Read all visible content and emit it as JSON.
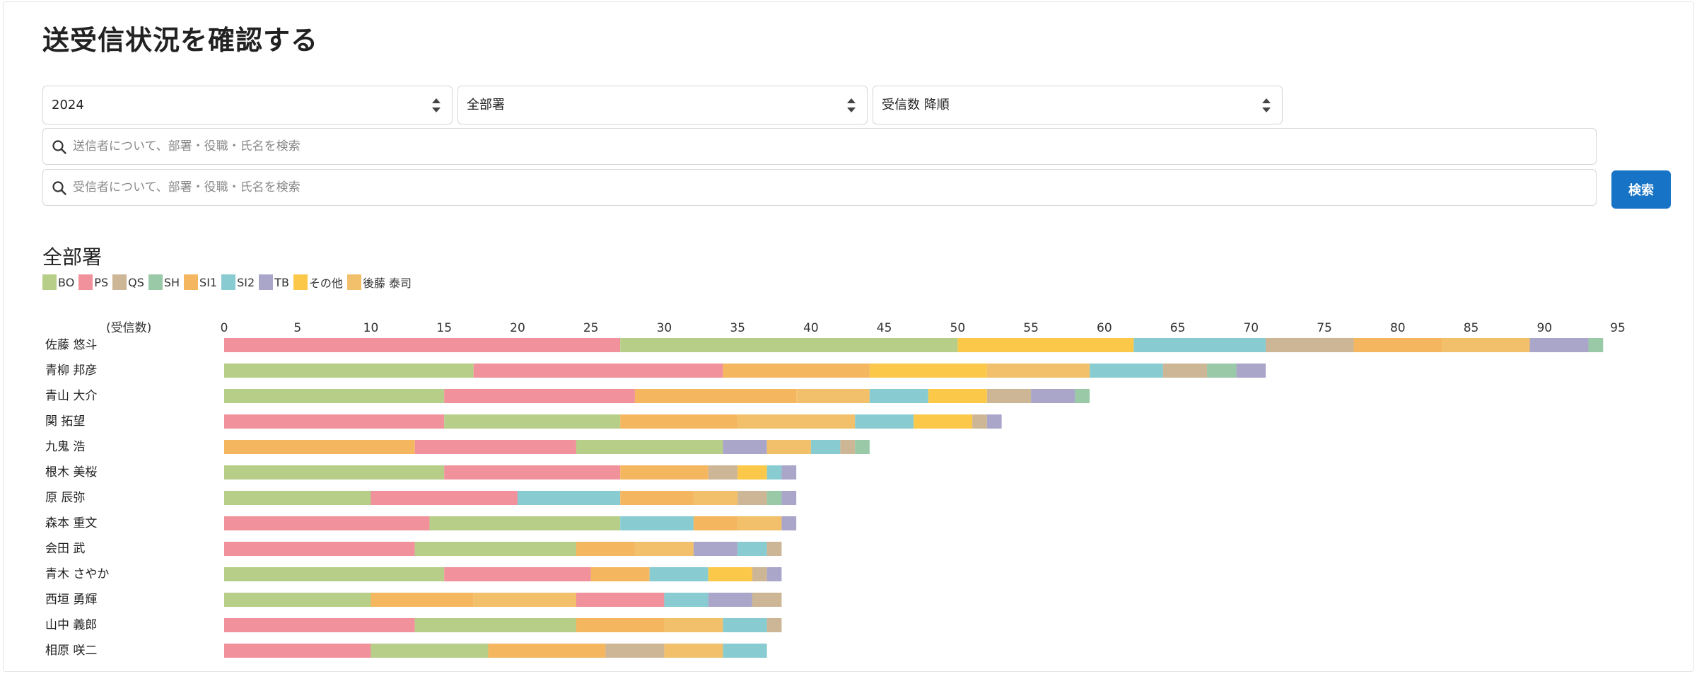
{
  "page": {
    "title": "送受信状況を確認する"
  },
  "filters": {
    "year": "2024",
    "department": "全部署",
    "sort": "受信数 降順"
  },
  "search": {
    "sender_placeholder": "送信者について、部署・役職・氏名を検索",
    "receiver_placeholder": "受信者について、部署・役職・氏名を検索",
    "button_label": "検索"
  },
  "colors": {
    "BO": "#b6ce87",
    "PS": "#f0919b",
    "QS": "#cdb695",
    "SH": "#9ac9a8",
    "SI1": "#f5b660",
    "SI2": "#88ccd1",
    "TB": "#a9a6c9",
    "その他": "#fbc849",
    "後藤 泰司": "#f2c06a",
    "accent": "#1773c6"
  },
  "chart_data": {
    "type": "bar",
    "orientation": "horizontal",
    "stacked": true,
    "title": "全部署",
    "ylabel": "(受信数)",
    "xlim": [
      0,
      95
    ],
    "xticks": [
      0,
      5,
      10,
      15,
      20,
      25,
      30,
      35,
      40,
      45,
      50,
      55,
      60,
      65,
      70,
      75,
      80,
      85,
      90,
      95
    ],
    "legend": [
      "BO",
      "PS",
      "QS",
      "SH",
      "SI1",
      "SI2",
      "TB",
      "その他",
      "後藤 泰司"
    ],
    "categories": [
      "佐藤 悠斗",
      "青柳 邦彦",
      "青山 大介",
      "関 拓望",
      "九鬼 浩",
      "根木 美桜",
      "原 辰弥",
      "森本 重文",
      "会田 武",
      "青木 さやか",
      "西垣 勇輝",
      "山中 義郎",
      "相原 咲二"
    ],
    "rows": [
      [
        [
          "PS",
          27
        ],
        [
          "BO",
          23
        ],
        [
          "その他",
          12
        ],
        [
          "SI2",
          9
        ],
        [
          "QS",
          6
        ],
        [
          "SI1",
          6
        ],
        [
          "後藤 泰司",
          6
        ],
        [
          "TB",
          4
        ],
        [
          "SH",
          1
        ]
      ],
      [
        [
          "BO",
          17
        ],
        [
          "PS",
          17
        ],
        [
          "SI1",
          10
        ],
        [
          "その他",
          8
        ],
        [
          "後藤 泰司",
          7
        ],
        [
          "SI2",
          5
        ],
        [
          "QS",
          3
        ],
        [
          "SH",
          2
        ],
        [
          "TB",
          2
        ]
      ],
      [
        [
          "BO",
          15
        ],
        [
          "PS",
          13
        ],
        [
          "SI1",
          11
        ],
        [
          "後藤 泰司",
          5
        ],
        [
          "SI2",
          4
        ],
        [
          "その他",
          4
        ],
        [
          "QS",
          3
        ],
        [
          "TB",
          3
        ],
        [
          "SH",
          1
        ]
      ],
      [
        [
          "PS",
          15
        ],
        [
          "BO",
          12
        ],
        [
          "SI1",
          8
        ],
        [
          "後藤 泰司",
          8
        ],
        [
          "SI2",
          4
        ],
        [
          "その他",
          4
        ],
        [
          "QS",
          1
        ],
        [
          "TB",
          1
        ]
      ],
      [
        [
          "SI1",
          13
        ],
        [
          "PS",
          11
        ],
        [
          "BO",
          10
        ],
        [
          "TB",
          3
        ],
        [
          "後藤 泰司",
          3
        ],
        [
          "SI2",
          2
        ],
        [
          "QS",
          1
        ],
        [
          "SH",
          1
        ]
      ],
      [
        [
          "BO",
          15
        ],
        [
          "PS",
          12
        ],
        [
          "SI1",
          6
        ],
        [
          "QS",
          2
        ],
        [
          "その他",
          2
        ],
        [
          "SI2",
          1
        ],
        [
          "TB",
          1
        ]
      ],
      [
        [
          "BO",
          10
        ],
        [
          "PS",
          10
        ],
        [
          "SI2",
          7
        ],
        [
          "SI1",
          5
        ],
        [
          "後藤 泰司",
          3
        ],
        [
          "QS",
          2
        ],
        [
          "SH",
          1
        ],
        [
          "TB",
          1
        ]
      ],
      [
        [
          "PS",
          14
        ],
        [
          "BO",
          13
        ],
        [
          "SI2",
          5
        ],
        [
          "SI1",
          3
        ],
        [
          "後藤 泰司",
          3
        ],
        [
          "TB",
          1
        ]
      ],
      [
        [
          "PS",
          13
        ],
        [
          "BO",
          11
        ],
        [
          "SI1",
          4
        ],
        [
          "後藤 泰司",
          4
        ],
        [
          "TB",
          3
        ],
        [
          "SI2",
          2
        ],
        [
          "QS",
          1
        ]
      ],
      [
        [
          "BO",
          15
        ],
        [
          "PS",
          10
        ],
        [
          "SI1",
          4
        ],
        [
          "SI2",
          4
        ],
        [
          "その他",
          3
        ],
        [
          "QS",
          1
        ],
        [
          "TB",
          1
        ]
      ],
      [
        [
          "BO",
          10
        ],
        [
          "SI1",
          7
        ],
        [
          "後藤 泰司",
          7
        ],
        [
          "PS",
          6
        ],
        [
          "SI2",
          3
        ],
        [
          "TB",
          3
        ],
        [
          "QS",
          2
        ]
      ],
      [
        [
          "PS",
          13
        ],
        [
          "BO",
          11
        ],
        [
          "SI1",
          6
        ],
        [
          "後藤 泰司",
          4
        ],
        [
          "SI2",
          3
        ],
        [
          "QS",
          1
        ]
      ],
      [
        [
          "PS",
          10
        ],
        [
          "BO",
          8
        ],
        [
          "SI1",
          8
        ],
        [
          "QS",
          4
        ],
        [
          "後藤 泰司",
          4
        ],
        [
          "SI2",
          3
        ]
      ]
    ]
  }
}
